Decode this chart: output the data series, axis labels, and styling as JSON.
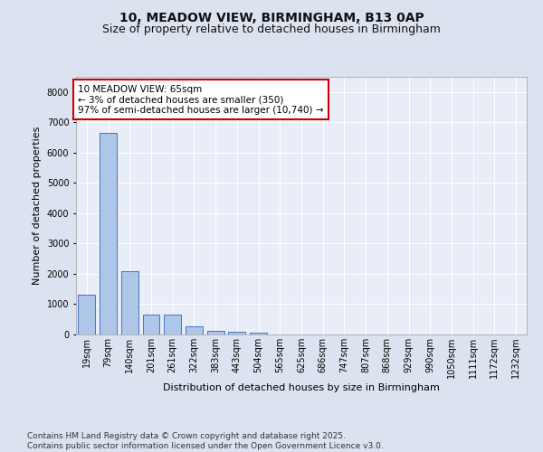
{
  "title_line1": "10, MEADOW VIEW, BIRMINGHAM, B13 0AP",
  "title_line2": "Size of property relative to detached houses in Birmingham",
  "xlabel": "Distribution of detached houses by size in Birmingham",
  "ylabel": "Number of detached properties",
  "categories": [
    "19sqm",
    "79sqm",
    "140sqm",
    "201sqm",
    "261sqm",
    "322sqm",
    "383sqm",
    "443sqm",
    "504sqm",
    "565sqm",
    "625sqm",
    "686sqm",
    "747sqm",
    "807sqm",
    "868sqm",
    "929sqm",
    "990sqm",
    "1050sqm",
    "1111sqm",
    "1172sqm",
    "1232sqm"
  ],
  "values": [
    1300,
    6650,
    2100,
    650,
    650,
    270,
    130,
    100,
    55,
    0,
    0,
    0,
    0,
    0,
    0,
    0,
    0,
    0,
    0,
    0,
    0
  ],
  "bar_color": "#aec6e8",
  "bar_edge_color": "#4472c4",
  "annotation_text": "10 MEADOW VIEW: 65sqm\n← 3% of detached houses are smaller (350)\n97% of semi-detached houses are larger (10,740) →",
  "annotation_box_color": "#ffffff",
  "annotation_border_color": "#cc0000",
  "ylim": [
    0,
    8500
  ],
  "yticks": [
    0,
    1000,
    2000,
    3000,
    4000,
    5000,
    6000,
    7000,
    8000
  ],
  "background_color": "#dce3f0",
  "plot_background_color": "#e8edf7",
  "grid_color": "#ffffff",
  "footer_text": "Contains HM Land Registry data © Crown copyright and database right 2025.\nContains public sector information licensed under the Open Government Licence v3.0.",
  "title_fontsize": 10,
  "subtitle_fontsize": 9,
  "axis_label_fontsize": 8,
  "tick_fontsize": 7,
  "annotation_fontsize": 7.5,
  "footer_fontsize": 6.5
}
